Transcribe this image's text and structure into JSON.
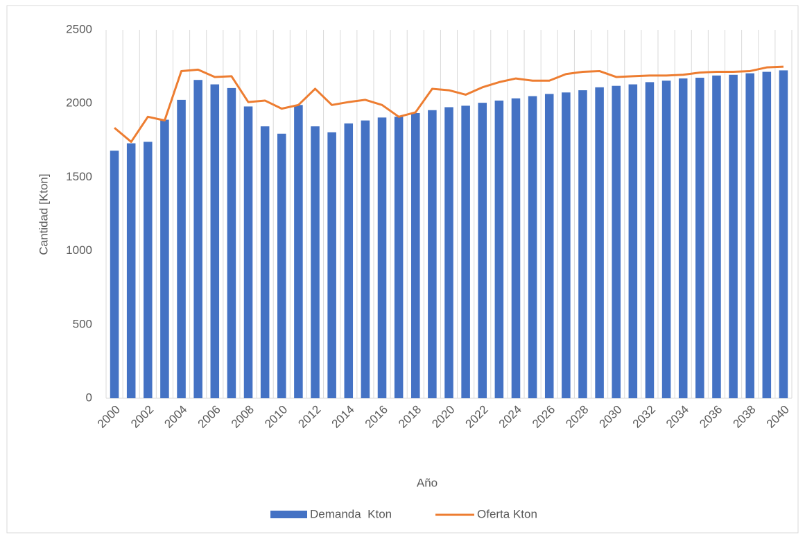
{
  "chart_data": {
    "type": "bar_line",
    "xlabel": "Año",
    "ylabel": "Cantidad [Kton]",
    "categories": [
      "2000",
      null,
      "2002",
      null,
      "2004",
      null,
      "2006",
      null,
      "2008",
      null,
      "2010",
      null,
      "2012",
      null,
      "2014",
      null,
      "2016",
      null,
      "2018",
      null,
      "2020",
      null,
      "2022",
      null,
      "2024",
      null,
      "2026",
      null,
      "2028",
      null,
      "2030",
      null,
      "2032",
      null,
      "2034",
      null,
      "2036",
      null,
      "2038",
      null,
      "2040"
    ],
    "series": [
      {
        "name": "Demanda  Kton",
        "type": "bar",
        "color": "#4472c4",
        "values": [
          1680,
          1730,
          1740,
          1890,
          2025,
          2160,
          2130,
          2105,
          1980,
          1845,
          1795,
          1990,
          1845,
          1805,
          1865,
          1885,
          1905,
          1910,
          1935,
          1955,
          1975,
          1985,
          2005,
          2020,
          2035,
          2050,
          2065,
          2075,
          2090,
          2110,
          2120,
          2130,
          2145,
          2155,
          2170,
          2175,
          2190,
          2195,
          2205,
          2215,
          2225
        ]
      },
      {
        "name": "Oferta Kton",
        "type": "line",
        "color": "#ed7d31",
        "values": [
          1835,
          1740,
          1910,
          1885,
          2220,
          2230,
          2180,
          2185,
          2010,
          2020,
          1965,
          1990,
          2100,
          1990,
          2010,
          2025,
          1990,
          1910,
          1940,
          2100,
          2090,
          2060,
          2110,
          2145,
          2170,
          2155,
          2155,
          2200,
          2215,
          2220,
          2180,
          2185,
          2190,
          2190,
          2195,
          2210,
          2215,
          2215,
          2220,
          2245,
          2250
        ]
      }
    ],
    "ylim": [
      0,
      2500
    ],
    "yticks": [
      0,
      500,
      1000,
      1500,
      2000,
      2500
    ],
    "xgrid": true,
    "ygrid": false,
    "legend": "bottom"
  }
}
